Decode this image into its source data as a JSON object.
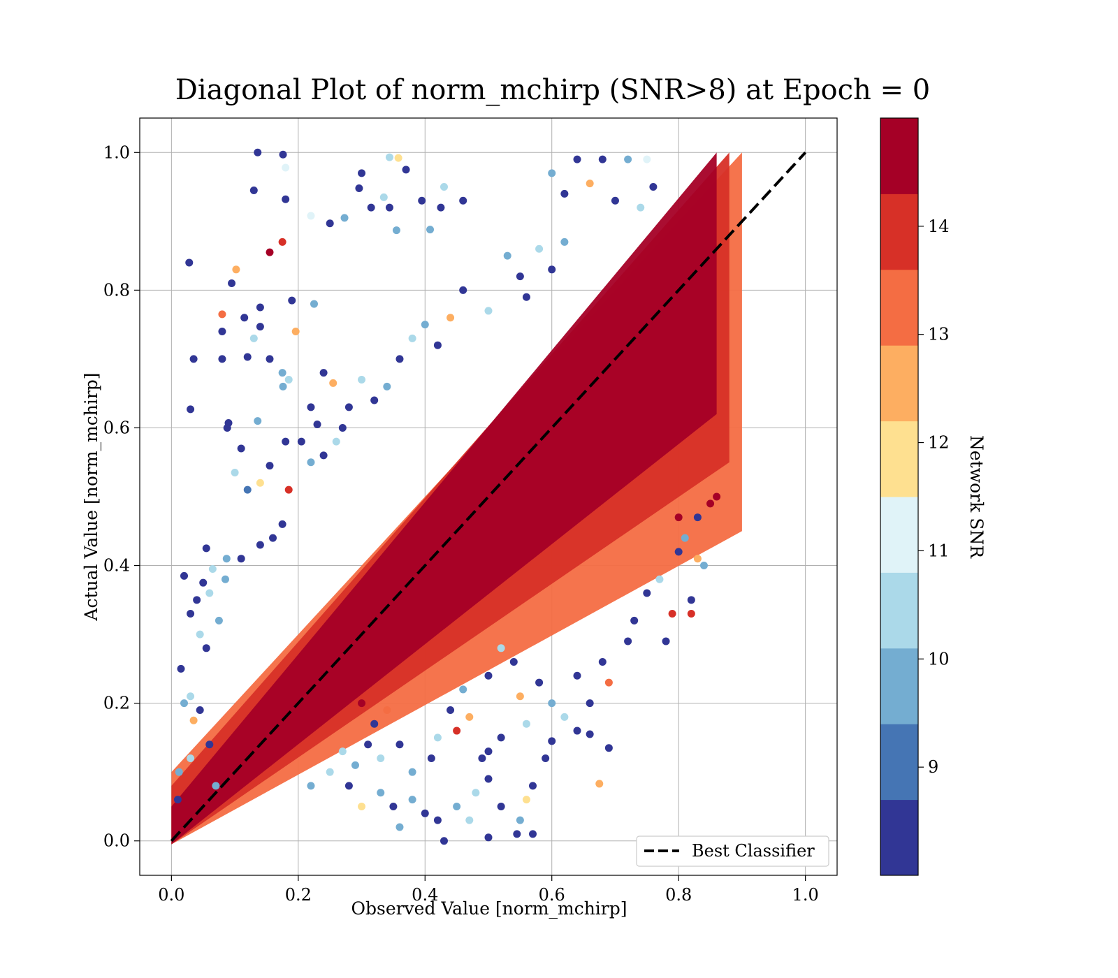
{
  "chart_data": {
    "type": "scatter",
    "title": "Diagonal Plot of norm_mchirp (SNR>8) at Epoch = 0",
    "xlabel": "Observed Value [norm_mchirp]",
    "ylabel": "Actual Value [norm_mchirp]",
    "xlim": [
      -0.05,
      1.05
    ],
    "ylim": [
      -0.05,
      1.05
    ],
    "xticks": [
      "0.0",
      "0.2",
      "0.4",
      "0.6",
      "0.8",
      "1.0"
    ],
    "yticks": [
      "0.0",
      "0.2",
      "0.4",
      "0.6",
      "0.8",
      "1.0"
    ],
    "grid": true,
    "colorbar": {
      "label": "Network SNR",
      "range": [
        8,
        15
      ],
      "ticks": [
        "9",
        "10",
        "11",
        "12",
        "13",
        "14"
      ],
      "colors": [
        "#313695",
        "#4575b4",
        "#74add1",
        "#abd9e9",
        "#e0f3f8",
        "#fee090",
        "#fdae61",
        "#f46d43",
        "#d73027",
        "#a50026"
      ]
    },
    "reference_line": {
      "name": "Best Classifier",
      "x": [
        0,
        1
      ],
      "y": [
        0,
        1
      ],
      "style": "dashed",
      "color": "#000000"
    },
    "legend": {
      "position": "lower-right",
      "entries": [
        "Best Classifier"
      ]
    },
    "series": [
      {
        "points": [
          [
            0.136,
            1.0,
            8.2
          ],
          [
            0.176,
            0.997,
            8.3
          ],
          [
            0.344,
            0.993,
            10.2
          ],
          [
            0.358,
            0.992,
            12.1
          ],
          [
            0.18,
            0.978,
            11.2
          ],
          [
            0.3,
            0.97,
            8.4
          ],
          [
            0.37,
            0.975,
            8.6
          ],
          [
            0.335,
            0.935,
            10.4
          ],
          [
            0.13,
            0.945,
            8.5
          ],
          [
            0.18,
            0.932,
            8.3
          ],
          [
            0.296,
            0.948,
            8.2
          ],
          [
            0.22,
            0.908,
            11.4
          ],
          [
            0.25,
            0.897,
            8.3
          ],
          [
            0.273,
            0.905,
            9.8
          ],
          [
            0.315,
            0.92,
            8.7
          ],
          [
            0.344,
            0.92,
            8.5
          ],
          [
            0.395,
            0.93,
            8.3
          ],
          [
            0.355,
            0.887,
            10.1
          ],
          [
            0.408,
            0.888,
            9.6
          ],
          [
            0.425,
            0.92,
            8.4
          ],
          [
            0.43,
            0.95,
            10.3
          ],
          [
            0.46,
            0.93,
            8.2
          ],
          [
            0.028,
            0.84,
            8.3
          ],
          [
            0.155,
            0.855,
            14.3
          ],
          [
            0.175,
            0.87,
            14.1
          ],
          [
            0.102,
            0.83,
            12.8
          ],
          [
            0.095,
            0.81,
            8.3
          ],
          [
            0.14,
            0.775,
            8.4
          ],
          [
            0.19,
            0.785,
            8.6
          ],
          [
            0.225,
            0.78,
            9.7
          ],
          [
            0.08,
            0.765,
            13.4
          ],
          [
            0.115,
            0.76,
            8.2
          ],
          [
            0.13,
            0.73,
            10.4
          ],
          [
            0.14,
            0.747,
            8.2
          ],
          [
            0.196,
            0.74,
            12.4
          ],
          [
            0.08,
            0.74,
            8.3
          ],
          [
            0.035,
            0.7,
            8.2
          ],
          [
            0.08,
            0.7,
            8.3
          ],
          [
            0.12,
            0.703,
            8.2
          ],
          [
            0.155,
            0.7,
            8.3
          ],
          [
            0.175,
            0.68,
            9.6
          ],
          [
            0.185,
            0.67,
            10.2
          ],
          [
            0.176,
            0.66,
            9.4
          ],
          [
            0.03,
            0.627,
            8.4
          ],
          [
            0.09,
            0.607,
            8.2
          ],
          [
            0.088,
            0.6,
            8.3
          ],
          [
            0.136,
            0.61,
            9.8
          ],
          [
            0.11,
            0.57,
            8.3
          ],
          [
            0.24,
            0.68,
            8.2
          ],
          [
            0.255,
            0.665,
            12.3
          ],
          [
            0.22,
            0.63,
            8.3
          ],
          [
            0.23,
            0.605,
            8.2
          ],
          [
            0.18,
            0.58,
            8.2
          ],
          [
            0.205,
            0.58,
            8.2
          ],
          [
            0.1,
            0.535,
            10.5
          ],
          [
            0.12,
            0.51,
            9.3
          ],
          [
            0.155,
            0.545,
            8.6
          ],
          [
            0.14,
            0.52,
            11.5
          ],
          [
            0.185,
            0.51,
            14.2
          ],
          [
            0.175,
            0.46,
            8.2
          ],
          [
            0.16,
            0.44,
            8.3
          ],
          [
            0.14,
            0.43,
            8.3
          ],
          [
            0.055,
            0.425,
            8.2
          ],
          [
            0.087,
            0.41,
            9.6
          ],
          [
            0.11,
            0.41,
            8.4
          ],
          [
            0.05,
            0.375,
            8.3
          ],
          [
            0.065,
            0.395,
            10.3
          ],
          [
            0.02,
            0.385,
            8.2
          ],
          [
            0.085,
            0.38,
            9.5
          ],
          [
            0.04,
            0.35,
            8.3
          ],
          [
            0.06,
            0.36,
            10.6
          ],
          [
            0.075,
            0.32,
            9.4
          ],
          [
            0.03,
            0.33,
            8.2
          ],
          [
            0.045,
            0.3,
            10.3
          ],
          [
            0.055,
            0.28,
            8.5
          ],
          [
            0.015,
            0.25,
            8.2
          ],
          [
            0.03,
            0.21,
            10.2
          ],
          [
            0.02,
            0.2,
            9.4
          ],
          [
            0.045,
            0.19,
            8.3
          ],
          [
            0.035,
            0.175,
            12.6
          ],
          [
            0.01,
            0.06,
            8.3
          ],
          [
            0.012,
            0.1,
            9.7
          ],
          [
            0.03,
            0.12,
            10.4
          ],
          [
            0.06,
            0.14,
            8.6
          ],
          [
            0.07,
            0.08,
            10.1
          ],
          [
            0.22,
            0.08,
            9.5
          ],
          [
            0.25,
            0.1,
            10.3
          ],
          [
            0.28,
            0.08,
            8.4
          ],
          [
            0.3,
            0.05,
            11.6
          ],
          [
            0.33,
            0.07,
            9.5
          ],
          [
            0.35,
            0.05,
            8.5
          ],
          [
            0.38,
            0.06,
            10.1
          ],
          [
            0.4,
            0.04,
            8.3
          ],
          [
            0.42,
            0.03,
            8.6
          ],
          [
            0.45,
            0.05,
            9.5
          ],
          [
            0.48,
            0.07,
            10.4
          ],
          [
            0.5,
            0.09,
            8.5
          ],
          [
            0.52,
            0.05,
            8.3
          ],
          [
            0.55,
            0.03,
            9.6
          ],
          [
            0.57,
            0.01,
            8.3
          ],
          [
            0.5,
            0.005,
            8.2
          ],
          [
            0.545,
            0.01,
            8.2
          ],
          [
            0.47,
            0.03,
            10.5
          ],
          [
            0.43,
            0.0,
            8.2
          ],
          [
            0.36,
            0.02,
            9.4
          ],
          [
            0.49,
            0.12,
            8.6
          ],
          [
            0.5,
            0.13,
            8.4
          ],
          [
            0.52,
            0.15,
            8.3
          ],
          [
            0.56,
            0.17,
            10.5
          ],
          [
            0.59,
            0.12,
            8.2
          ],
          [
            0.6,
            0.145,
            8.3
          ],
          [
            0.66,
            0.155,
            8.2
          ],
          [
            0.69,
            0.135,
            8.3
          ],
          [
            0.675,
            0.083,
            12.6
          ],
          [
            0.57,
            0.08,
            8.4
          ],
          [
            0.56,
            0.06,
            11.5
          ],
          [
            0.66,
            0.2,
            8.3
          ],
          [
            0.69,
            0.23,
            13.6
          ],
          [
            0.68,
            0.26,
            8.5
          ],
          [
            0.72,
            0.29,
            8.2
          ],
          [
            0.73,
            0.32,
            8.4
          ],
          [
            0.78,
            0.29,
            8.3
          ],
          [
            0.79,
            0.33,
            14.1
          ],
          [
            0.82,
            0.33,
            13.9
          ],
          [
            0.82,
            0.35,
            8.4
          ],
          [
            0.75,
            0.36,
            8.6
          ],
          [
            0.77,
            0.38,
            10.6
          ],
          [
            0.8,
            0.42,
            8.3
          ],
          [
            0.83,
            0.41,
            12.6
          ],
          [
            0.84,
            0.4,
            9.6
          ],
          [
            0.81,
            0.44,
            9.5
          ],
          [
            0.83,
            0.47,
            8.6
          ],
          [
            0.85,
            0.49,
            14.8
          ],
          [
            0.86,
            0.5,
            14.3
          ],
          [
            0.8,
            0.47,
            14.9
          ],
          [
            0.62,
            0.18,
            10.3
          ],
          [
            0.64,
            0.24,
            8.5
          ],
          [
            0.64,
            0.16,
            8.4
          ],
          [
            0.6,
            0.2,
            10.1
          ],
          [
            0.58,
            0.23,
            8.3
          ],
          [
            0.55,
            0.21,
            12.4
          ],
          [
            0.54,
            0.26,
            8.6
          ],
          [
            0.52,
            0.28,
            10.4
          ],
          [
            0.5,
            0.24,
            8.3
          ],
          [
            0.46,
            0.22,
            9.5
          ],
          [
            0.44,
            0.19,
            8.4
          ],
          [
            0.42,
            0.15,
            10.5
          ],
          [
            0.41,
            0.12,
            8.2
          ],
          [
            0.45,
            0.16,
            14.2
          ],
          [
            0.47,
            0.18,
            12.7
          ],
          [
            0.38,
            0.1,
            9.5
          ],
          [
            0.36,
            0.14,
            8.3
          ],
          [
            0.33,
            0.12,
            10.6
          ],
          [
            0.31,
            0.14,
            8.5
          ],
          [
            0.29,
            0.11,
            9.4
          ],
          [
            0.27,
            0.13,
            10.2
          ],
          [
            0.32,
            0.17,
            8.6
          ],
          [
            0.34,
            0.19,
            13.5
          ],
          [
            0.3,
            0.2,
            14.6
          ],
          [
            0.62,
            0.94,
            8.3
          ],
          [
            0.6,
            0.97,
            10.1
          ],
          [
            0.64,
            0.99,
            8.5
          ],
          [
            0.68,
            0.99,
            8.3
          ],
          [
            0.72,
            0.99,
            9.4
          ],
          [
            0.75,
            0.99,
            11.2
          ],
          [
            0.66,
            0.955,
            12.5
          ],
          [
            0.7,
            0.93,
            8.4
          ],
          [
            0.74,
            0.92,
            10.3
          ],
          [
            0.76,
            0.95,
            8.2
          ],
          [
            0.62,
            0.87,
            9.5
          ],
          [
            0.6,
            0.83,
            8.5
          ],
          [
            0.58,
            0.86,
            10.4
          ],
          [
            0.55,
            0.82,
            8.3
          ],
          [
            0.53,
            0.85,
            9.6
          ],
          [
            0.56,
            0.79,
            8.3
          ],
          [
            0.5,
            0.77,
            10.5
          ],
          [
            0.46,
            0.8,
            8.4
          ],
          [
            0.44,
            0.76,
            12.6
          ],
          [
            0.42,
            0.72,
            8.3
          ],
          [
            0.4,
            0.75,
            9.4
          ],
          [
            0.38,
            0.73,
            10.4
          ],
          [
            0.36,
            0.7,
            8.2
          ],
          [
            0.34,
            0.66,
            9.5
          ],
          [
            0.32,
            0.64,
            8.4
          ],
          [
            0.3,
            0.67,
            10.6
          ],
          [
            0.28,
            0.63,
            8.2
          ],
          [
            0.27,
            0.6,
            8.3
          ],
          [
            0.26,
            0.58,
            10.2
          ],
          [
            0.24,
            0.56,
            8.3
          ],
          [
            0.22,
            0.55,
            9.5
          ]
        ]
      }
    ]
  }
}
